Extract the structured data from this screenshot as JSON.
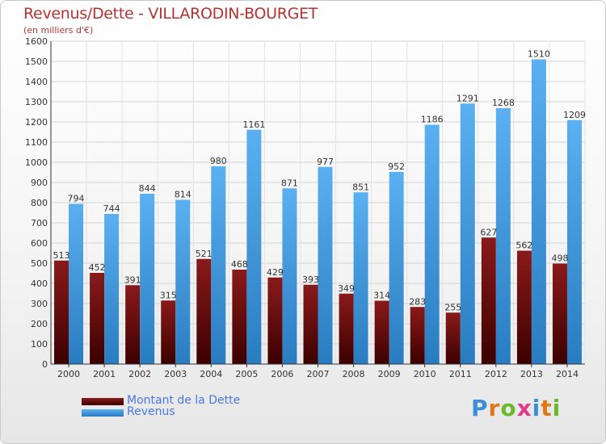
{
  "title": "Revenus/Dette - VILLARODIN-BOURGET",
  "subtitle": "(en milliers d'€)",
  "chart_data": {
    "type": "bar",
    "categories": [
      "2000",
      "2001",
      "2002",
      "2003",
      "2004",
      "2005",
      "2006",
      "2007",
      "2008",
      "2009",
      "2010",
      "2011",
      "2012",
      "2013",
      "2014"
    ],
    "series": [
      {
        "name": "Montant de la Dette",
        "color": "#7a1212",
        "values": [
          513,
          452,
          391,
          315,
          521,
          468,
          429,
          393,
          349,
          314,
          283,
          255,
          627,
          562,
          498
        ]
      },
      {
        "name": "Revenus",
        "color": "#3d9be0",
        "values": [
          794,
          744,
          844,
          814,
          980,
          1161,
          871,
          977,
          851,
          952,
          1186,
          1291,
          1268,
          1510,
          1209
        ]
      }
    ],
    "yticks": [
      0,
      100,
      200,
      300,
      400,
      500,
      600,
      700,
      800,
      900,
      1000,
      1100,
      1200,
      1300,
      1400,
      1500,
      1600
    ],
    "ylim": [
      0,
      1600
    ],
    "grid": true,
    "legend_position": "bottom-left"
  },
  "legend": {
    "debt_label": "Montant de la Dette",
    "revenue_label": "Revenus"
  },
  "logo": {
    "letters": [
      "P",
      "r",
      "o",
      "x",
      "i",
      "t",
      "i"
    ],
    "colors": [
      "#3a8fd8",
      "#e07818",
      "#6ab82c",
      "#e03a8a",
      "#3a8fd8",
      "#e07818",
      "#6ab82c"
    ]
  }
}
